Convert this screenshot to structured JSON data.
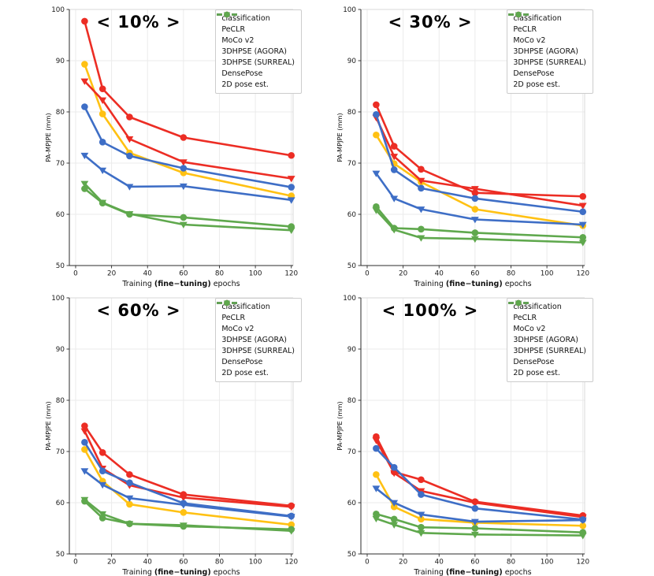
{
  "figure": {
    "ylabel": "PA-MPJPE (mm)",
    "xlabel_prefix": "Training ",
    "xlabel_bold": "(fine−tuning)",
    "xlabel_suffix": " epochs",
    "background": "#ffffff",
    "grid_color": "#ebebeb",
    "spine_dark": "#2b2b2b",
    "spine_light": "#d9d9d9",
    "colors": {
      "yellow": "#FFC113",
      "red": "#EC2D24",
      "blue": "#3E6EC6",
      "green": "#5FA84D"
    }
  },
  "chart_data": [
    {
      "type": "line",
      "title": "< 10% >",
      "xlabel": "Training (fine−tuning) epochs",
      "ylabel": "PA-MPJPE (mm)",
      "x": [
        5,
        15,
        30,
        60,
        120
      ],
      "xticks": [
        0,
        20,
        40,
        60,
        80,
        100,
        120
      ],
      "yticks": [
        50,
        60,
        70,
        80,
        90,
        100
      ],
      "xlim": [
        -3.5,
        121
      ],
      "ylim": [
        50,
        100
      ],
      "grid": true,
      "legend_position": "upper right",
      "series": [
        {
          "name": "classification",
          "color": "#FFC113",
          "marker": "circle",
          "values": [
            89.3,
            79.6,
            72.0,
            68.1,
            63.6
          ]
        },
        {
          "name": "PeCLR",
          "color": "#EC2D24",
          "marker": "circle",
          "values": [
            97.7,
            84.5,
            79.0,
            75.0,
            71.5
          ]
        },
        {
          "name": "MoCo v2",
          "color": "#EC2D24",
          "marker": "triangle",
          "values": [
            86.0,
            82.3,
            74.7,
            70.2,
            67.0
          ]
        },
        {
          "name": "3DHPSE (AGORA)",
          "color": "#3E6EC6",
          "marker": "circle",
          "values": [
            81.0,
            74.1,
            71.4,
            69.0,
            65.3
          ]
        },
        {
          "name": "3DHPSE (SURREAL)",
          "color": "#3E6EC6",
          "marker": "triangle",
          "values": [
            71.5,
            68.6,
            65.4,
            65.5,
            62.8
          ]
        },
        {
          "name": "DensePose",
          "color": "#5FA84D",
          "marker": "circle",
          "values": [
            65.0,
            62.2,
            60.0,
            59.4,
            57.6
          ]
        },
        {
          "name": "2D pose est.",
          "color": "#5FA84D",
          "marker": "triangle",
          "values": [
            66.0,
            62.3,
            60.1,
            58.0,
            56.9
          ]
        }
      ]
    },
    {
      "type": "line",
      "title": "< 30% >",
      "xlabel": "Training (fine−tuning) epochs",
      "ylabel": "PA-MPJPE (mm)",
      "x": [
        5,
        15,
        30,
        60,
        120
      ],
      "xticks": [
        0,
        20,
        40,
        60,
        80,
        100,
        120
      ],
      "yticks": [
        50,
        60,
        70,
        80,
        90,
        100
      ],
      "xlim": [
        -3.5,
        121
      ],
      "ylim": [
        50,
        100
      ],
      "grid": true,
      "legend_position": "upper right",
      "series": [
        {
          "name": "classification",
          "color": "#FFC113",
          "marker": "circle",
          "values": [
            75.5,
            69.9,
            66.3,
            61.0,
            57.8
          ]
        },
        {
          "name": "PeCLR",
          "color": "#EC2D24",
          "marker": "circle",
          "values": [
            81.4,
            73.3,
            68.8,
            64.2,
            63.5
          ]
        },
        {
          "name": "MoCo v2",
          "color": "#EC2D24",
          "marker": "triangle",
          "values": [
            78.9,
            71.3,
            66.6,
            65.0,
            61.7
          ]
        },
        {
          "name": "3DHPSE (AGORA)",
          "color": "#3E6EC6",
          "marker": "circle",
          "values": [
            79.5,
            68.7,
            65.1,
            63.1,
            60.5
          ]
        },
        {
          "name": "3DHPSE (SURREAL)",
          "color": "#3E6EC6",
          "marker": "triangle",
          "values": [
            68.0,
            63.1,
            61.0,
            59.0,
            58.0
          ]
        },
        {
          "name": "DensePose",
          "color": "#5FA84D",
          "marker": "circle",
          "values": [
            61.5,
            57.3,
            57.1,
            56.4,
            55.5
          ]
        },
        {
          "name": "2D pose est.",
          "color": "#5FA84D",
          "marker": "triangle",
          "values": [
            60.8,
            57.0,
            55.4,
            55.2,
            54.5
          ]
        }
      ]
    },
    {
      "type": "line",
      "title": "< 60% >",
      "xlabel": "Training (fine−tuning) epochs",
      "ylabel": "PA-MPJPE (mm)",
      "x": [
        5,
        15,
        30,
        60,
        120
      ],
      "xticks": [
        0,
        20,
        40,
        60,
        80,
        100,
        120
      ],
      "yticks": [
        50,
        60,
        70,
        80,
        90,
        100
      ],
      "xlim": [
        -3.5,
        121
      ],
      "ylim": [
        50,
        100
      ],
      "grid": true,
      "legend_position": "upper right",
      "series": [
        {
          "name": "classification",
          "color": "#FFC113",
          "marker": "circle",
          "values": [
            70.4,
            64.2,
            59.7,
            58.1,
            55.7
          ]
        },
        {
          "name": "PeCLR",
          "color": "#EC2D24",
          "marker": "circle",
          "values": [
            75.0,
            69.8,
            65.5,
            61.6,
            59.4
          ]
        },
        {
          "name": "MoCo v2",
          "color": "#EC2D24",
          "marker": "triangle",
          "values": [
            74.0,
            66.7,
            63.4,
            61.0,
            59.2
          ]
        },
        {
          "name": "3DHPSE (AGORA)",
          "color": "#3E6EC6",
          "marker": "circle",
          "values": [
            71.8,
            66.2,
            63.9,
            59.9,
            57.4
          ]
        },
        {
          "name": "3DHPSE (SURREAL)",
          "color": "#3E6EC6",
          "marker": "triangle",
          "values": [
            66.2,
            63.5,
            60.9,
            59.6,
            57.3
          ]
        },
        {
          "name": "DensePose",
          "color": "#5FA84D",
          "marker": "circle",
          "values": [
            60.3,
            57.0,
            55.9,
            55.4,
            54.8
          ]
        },
        {
          "name": "2D pose est.",
          "color": "#5FA84D",
          "marker": "triangle",
          "values": [
            60.6,
            57.8,
            55.9,
            55.6,
            54.5
          ]
        }
      ]
    },
    {
      "type": "line",
      "title": "< 100% >",
      "xlabel": "Training (fine−tuning) epochs",
      "ylabel": "PA-MPJPE (mm)",
      "x": [
        5,
        15,
        30,
        60,
        120
      ],
      "xticks": [
        0,
        20,
        40,
        60,
        80,
        100,
        120
      ],
      "yticks": [
        50,
        60,
        70,
        80,
        90,
        100
      ],
      "xlim": [
        -3.5,
        121
      ],
      "ylim": [
        50,
        100
      ],
      "grid": true,
      "legend_position": "upper right",
      "series": [
        {
          "name": "classification",
          "color": "#FFC113",
          "marker": "circle",
          "values": [
            65.5,
            59.2,
            56.8,
            56.1,
            55.5
          ]
        },
        {
          "name": "PeCLR",
          "color": "#EC2D24",
          "marker": "circle",
          "values": [
            72.9,
            66.0,
            64.5,
            60.2,
            57.5
          ]
        },
        {
          "name": "MoCo v2",
          "color": "#EC2D24",
          "marker": "triangle",
          "values": [
            72.2,
            65.8,
            62.3,
            60.0,
            57.2
          ]
        },
        {
          "name": "3DHPSE (AGORA)",
          "color": "#3E6EC6",
          "marker": "circle",
          "values": [
            70.6,
            66.9,
            61.6,
            58.9,
            56.7
          ]
        },
        {
          "name": "3DHPSE (SURREAL)",
          "color": "#3E6EC6",
          "marker": "triangle",
          "values": [
            62.8,
            60.0,
            57.7,
            56.3,
            56.6
          ]
        },
        {
          "name": "DensePose",
          "color": "#5FA84D",
          "marker": "circle",
          "values": [
            57.8,
            56.8,
            55.2,
            55.0,
            54.2
          ]
        },
        {
          "name": "2D pose est.",
          "color": "#5FA84D",
          "marker": "triangle",
          "values": [
            56.9,
            55.7,
            54.1,
            53.8,
            53.6
          ]
        }
      ]
    }
  ]
}
